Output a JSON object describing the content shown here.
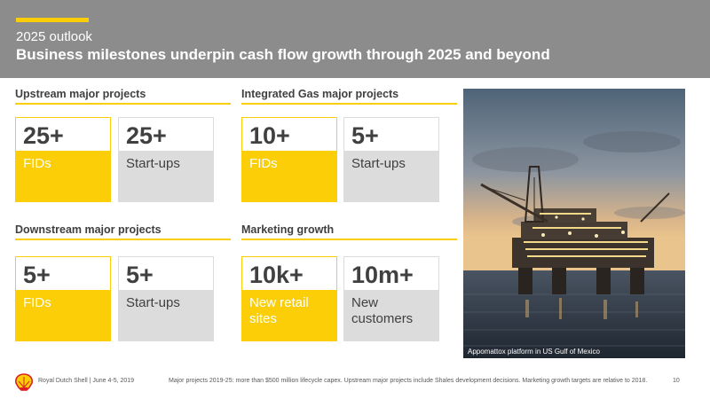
{
  "header": {
    "kicker": "2025 outlook",
    "title": "Business milestones underpin cash flow growth through 2025 and beyond"
  },
  "sections": [
    {
      "heading": "Upstream major projects",
      "tiles": [
        {
          "value": "25+",
          "label": "FIDs",
          "style": "yellow"
        },
        {
          "value": "25+",
          "label": "Start-ups",
          "style": "grey"
        }
      ]
    },
    {
      "heading": "Integrated Gas major projects",
      "tiles": [
        {
          "value": "10+",
          "label": "FIDs",
          "style": "yellow"
        },
        {
          "value": "5+",
          "label": "Start-ups",
          "style": "grey"
        }
      ]
    },
    {
      "heading": "Downstream major projects",
      "tiles": [
        {
          "value": "5+",
          "label": "FIDs",
          "style": "yellow"
        },
        {
          "value": "5+",
          "label": "Start-ups",
          "style": "grey"
        }
      ]
    },
    {
      "heading": "Marketing growth",
      "tiles": [
        {
          "value": "10k+",
          "label": "New retail sites",
          "style": "yellow"
        },
        {
          "value": "10m+",
          "label": "New customers",
          "style": "grey"
        }
      ]
    }
  ],
  "photo": {
    "caption": "Appomattox platform in US Gulf of Mexico"
  },
  "footer": {
    "company": "Royal Dutch Shell | June 4-5, 2019",
    "note": "Major projects 2019-25: more than $500 million lifecycle capex. Upstream major projects include Shales development decisions. Marketing growth targets are relative to 2018.",
    "page": "10"
  },
  "colors": {
    "accent": "#fbce07",
    "header_bg": "#8c8c8c",
    "tile_grey": "#dcdcdc",
    "logo_red": "#dd1d21"
  }
}
